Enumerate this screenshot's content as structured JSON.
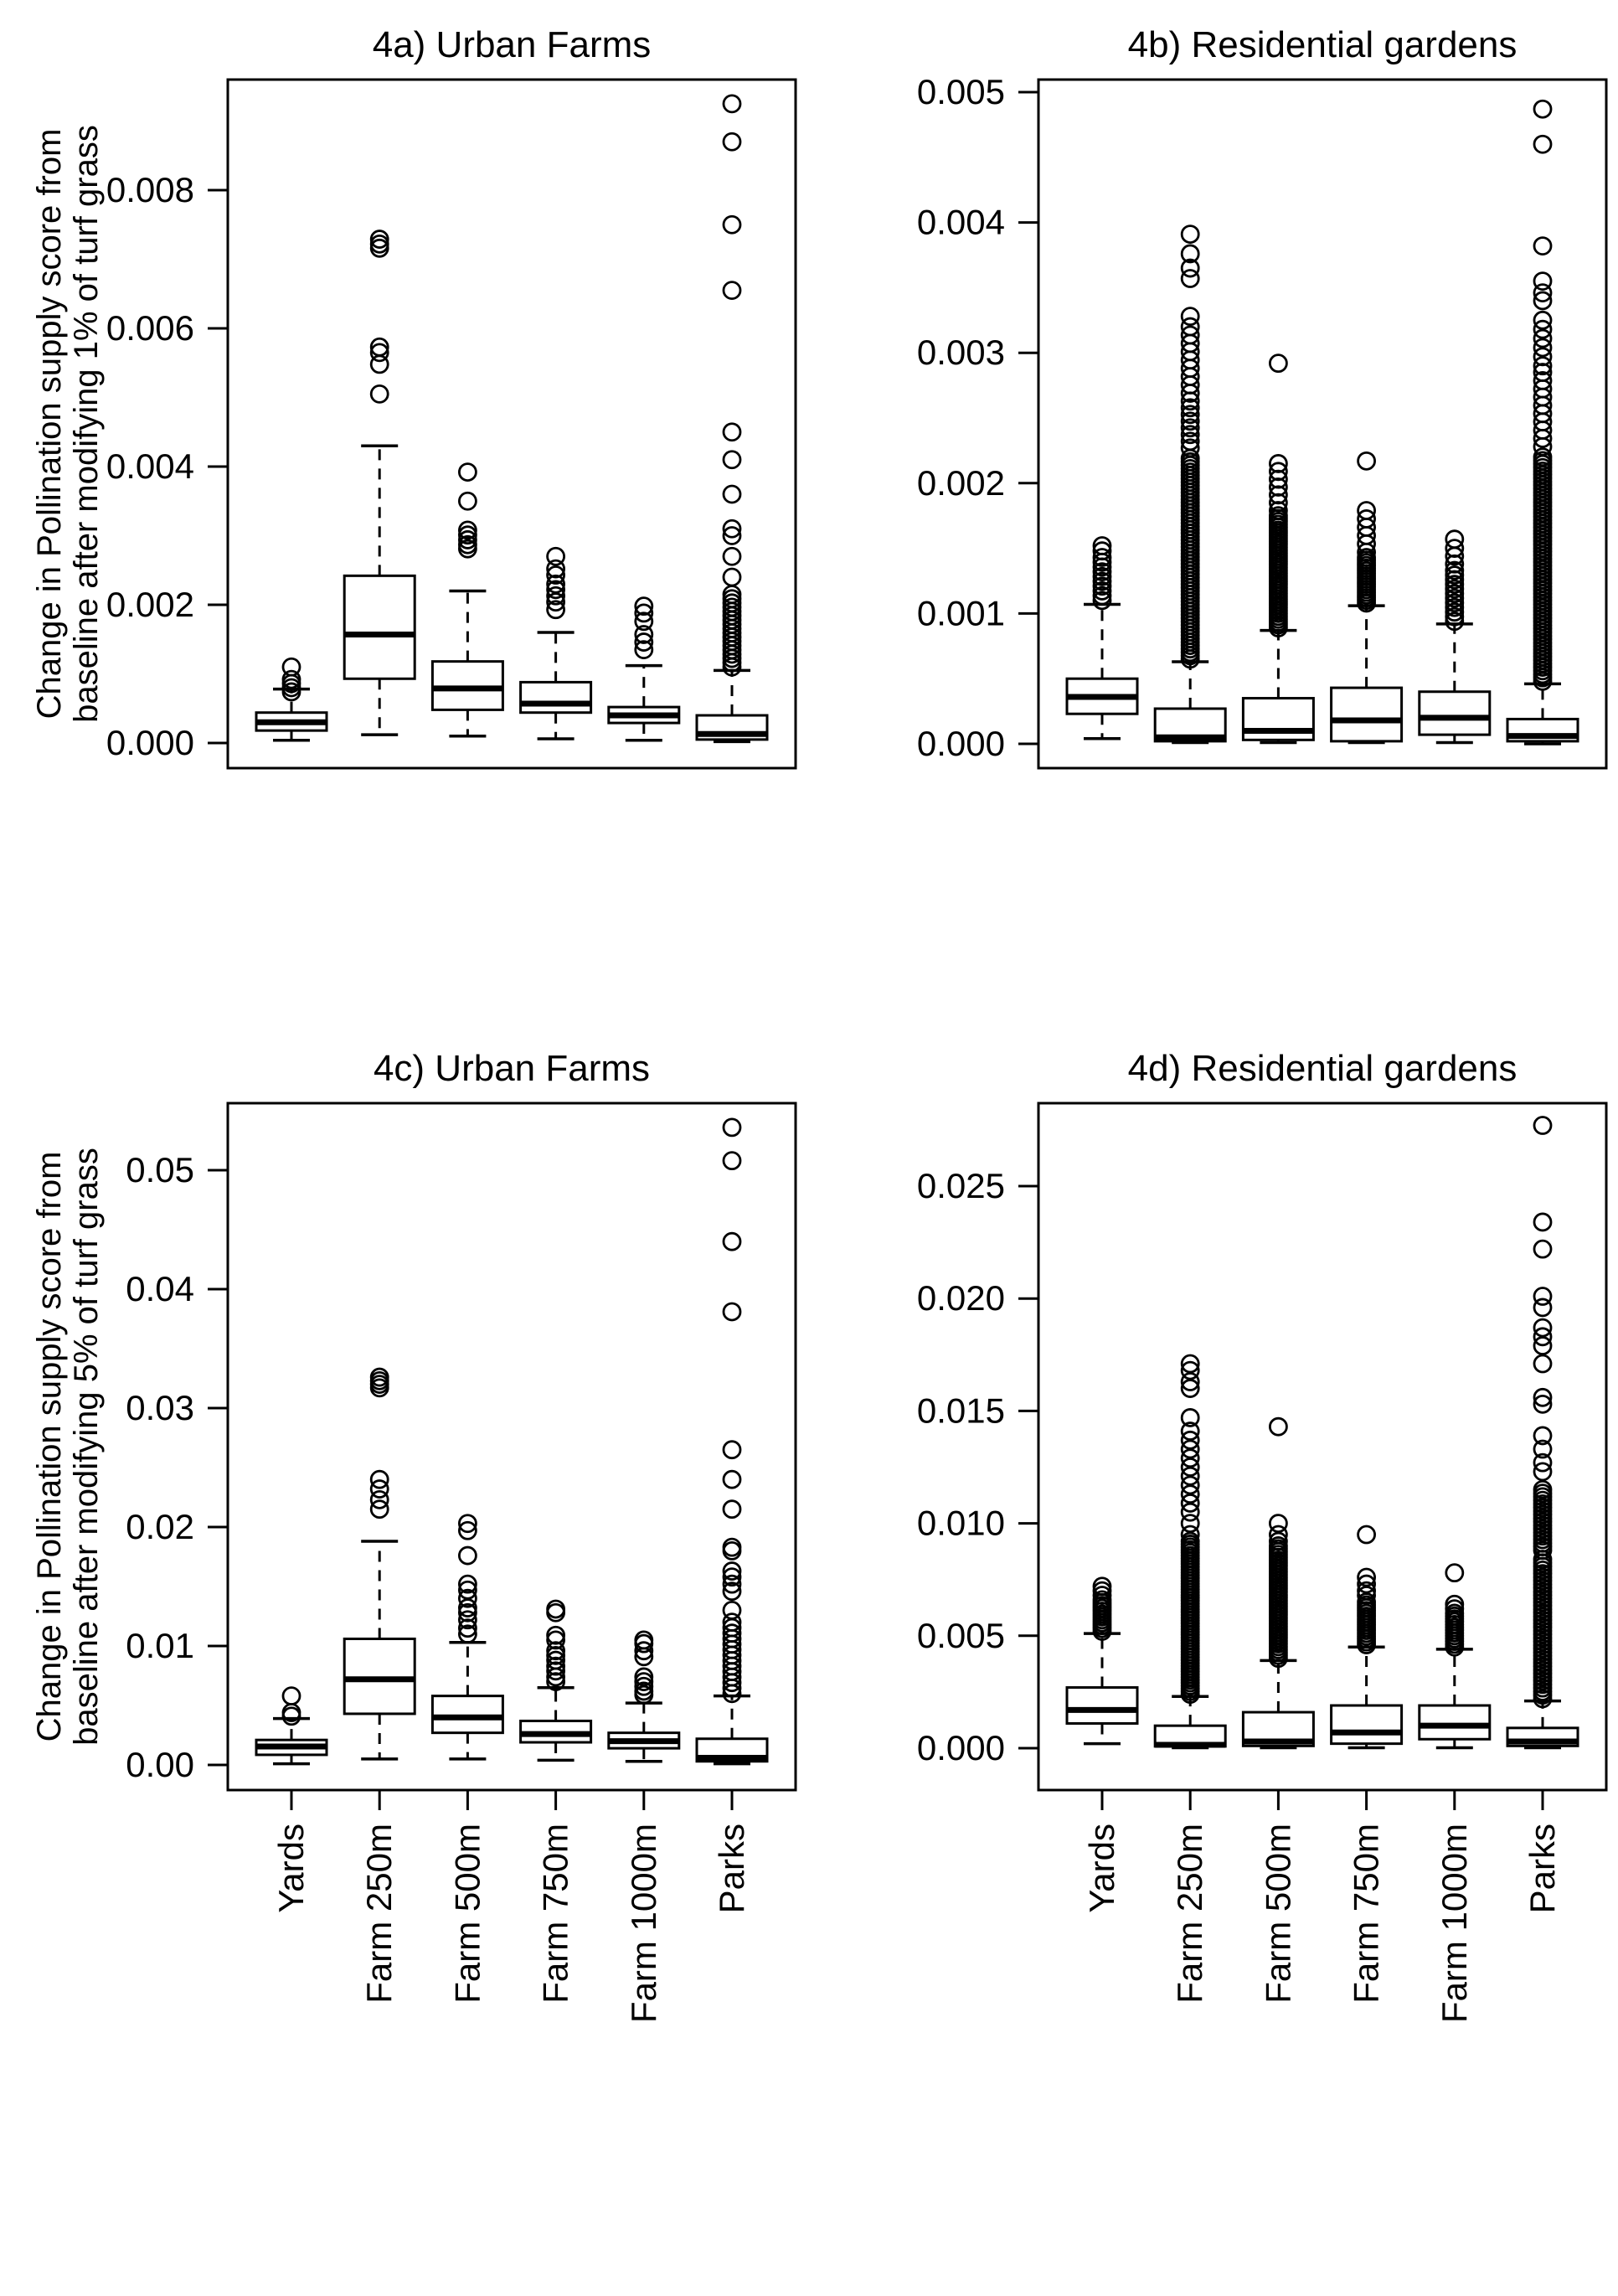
{
  "figure": {
    "description_colors": {
      "foreground": "#000000",
      "background": "#ffffff"
    }
  },
  "chart_data": [
    {
      "id": "4a",
      "type": "boxplot",
      "title": "4a)  Urban Farms",
      "ylabel_line1": "Change in Pollination supply score from",
      "ylabel_line2": "baseline after modifying 1% of turf grass",
      "yticks": [
        0.0,
        0.002,
        0.004,
        0.006,
        0.008
      ],
      "ytick_labels": [
        "0.000",
        "0.002",
        "0.004",
        "0.006",
        "0.008"
      ],
      "ylim": [
        -0.0004,
        0.0096
      ],
      "grid": false,
      "categories": [
        "Yards",
        "Farm 250m",
        "Farm 500m",
        "Farm 750m",
        "Farm 1000m",
        "Parks"
      ],
      "boxes": [
        {
          "category": "Yards",
          "min": 4e-05,
          "q1": 0.00018,
          "median": 0.0003,
          "q3": 0.00044,
          "max": 0.00078,
          "outliers": [
            0.00074,
            0.0008,
            0.00086,
            0.00092,
            0.0011
          ],
          "outlier_runs": []
        },
        {
          "category": "Farm 250m",
          "min": 0.00012,
          "q1": 0.00093,
          "median": 0.00157,
          "q3": 0.00242,
          "max": 0.0043,
          "outliers": [
            0.00505,
            0.00548,
            0.00565,
            0.00573,
            0.00716,
            0.00722,
            0.00729
          ],
          "outlier_runs": []
        },
        {
          "category": "Farm 500m",
          "min": 0.0001,
          "q1": 0.00048,
          "median": 0.00079,
          "q3": 0.00118,
          "max": 0.0022,
          "outliers": [
            0.00281,
            0.00287,
            0.00294,
            0.00301,
            0.00308,
            0.0035,
            0.00392
          ],
          "outlier_runs": []
        },
        {
          "category": "Farm 750m",
          "min": 6e-05,
          "q1": 0.00044,
          "median": 0.00057,
          "q3": 0.00088,
          "max": 0.0016,
          "outliers": [
            0.00193,
            0.00204,
            0.00213,
            0.00222,
            0.0023,
            0.00243,
            0.00252,
            0.0027
          ],
          "outlier_runs": []
        },
        {
          "category": "Farm 1000m",
          "min": 4e-05,
          "q1": 0.00029,
          "median": 0.0004,
          "q3": 0.00052,
          "max": 0.00112,
          "outliers": [
            0.00135,
            0.00146,
            0.00157,
            0.00176,
            0.00188,
            0.00198
          ],
          "outlier_runs": []
        },
        {
          "category": "Parks",
          "min": 2e-05,
          "q1": 5e-05,
          "median": 0.00013,
          "q3": 0.0004,
          "max": 0.00105,
          "outliers": [
            0.0024,
            0.0027,
            0.003,
            0.0031,
            0.0036,
            0.0041,
            0.0045,
            0.00655,
            0.0075,
            0.0087,
            0.00925
          ],
          "outlier_runs": [
            [
              0.0011,
              0.00215,
              18
            ]
          ]
        }
      ]
    },
    {
      "id": "4b",
      "type": "boxplot",
      "title": "4b)  Residential gardens",
      "ylabel_line1": "",
      "ylabel_line2": "",
      "yticks": [
        0.0,
        0.001,
        0.002,
        0.003,
        0.004,
        0.005
      ],
      "ytick_labels": [
        "0.000",
        "0.001",
        "0.002",
        "0.003",
        "0.004",
        "0.005"
      ],
      "ylim": [
        -0.0002,
        0.0051
      ],
      "grid": false,
      "categories": [
        "Yards",
        "Farm 250m",
        "Farm 500m",
        "Farm 750m",
        "Farm 1000m",
        "Parks"
      ],
      "boxes": [
        {
          "category": "Yards",
          "min": 4e-05,
          "q1": 0.00023,
          "median": 0.00036,
          "q3": 0.0005,
          "max": 0.00107,
          "outliers": [
            0.00148,
            0.00152
          ],
          "outlier_runs": [
            [
              0.0011,
              0.00143,
              10
            ]
          ]
        },
        {
          "category": "Farm 250m",
          "min": 1e-05,
          "q1": 2e-05,
          "median": 5e-05,
          "q3": 0.00027,
          "max": 0.00063,
          "outliers": [
            0.00328,
            0.00357,
            0.00365,
            0.00376,
            0.00391
          ],
          "outlier_runs": [
            [
              0.00065,
              0.00219,
              60
            ],
            [
              0.00227,
              0.00263,
              8
            ],
            [
              0.00269,
              0.0032,
              9
            ]
          ]
        },
        {
          "category": "Farm 500m",
          "min": 1e-05,
          "q1": 3e-05,
          "median": 0.0001,
          "q3": 0.00035,
          "max": 0.00087,
          "outliers": [
            0.00292
          ],
          "outlier_runs": [
            [
              0.00089,
              0.00175,
              40
            ],
            [
              0.00179,
              0.00215,
              7
            ]
          ]
        },
        {
          "category": "Farm 750m",
          "min": 1e-05,
          "q1": 2e-05,
          "median": 0.00018,
          "q3": 0.00043,
          "max": 0.00106,
          "outliers": [
            0.00217
          ],
          "outlier_runs": [
            [
              0.00108,
              0.00143,
              18
            ],
            [
              0.00147,
              0.00179,
              6
            ]
          ]
        },
        {
          "category": "Farm 1000m",
          "min": 1e-05,
          "q1": 7e-05,
          "median": 0.0002,
          "q3": 0.0004,
          "max": 0.00092,
          "outliers": [
            0.00157
          ],
          "outlier_runs": [
            [
              0.00094,
              0.00133,
              12
            ],
            [
              0.00138,
              0.0015,
              3
            ]
          ]
        },
        {
          "category": "Parks",
          "min": 0.0,
          "q1": 2e-05,
          "median": 6e-05,
          "q3": 0.00019,
          "max": 0.00046,
          "outliers": [
            0.0034,
            0.00346,
            0.00355,
            0.00382,
            0.0046,
            0.00487
          ],
          "outlier_runs": [
            [
              0.00048,
              0.0022,
              65
            ],
            [
              0.00228,
              0.00285,
              10
            ],
            [
              0.0029,
              0.00325,
              6
            ]
          ]
        }
      ]
    },
    {
      "id": "4c",
      "type": "boxplot",
      "title": "4c)  Urban Farms",
      "ylabel_line1": "Change in Pollination supply score from",
      "ylabel_line2": "baseline after modifying 5% of turf grass",
      "yticks": [
        0.0,
        0.01,
        0.02,
        0.03,
        0.04,
        0.05
      ],
      "ytick_labels": [
        "0.00",
        "0.01",
        "0.02",
        "0.03",
        "0.04",
        "0.05"
      ],
      "ylim": [
        -0.0021,
        0.0556
      ],
      "grid": false,
      "categories": [
        "Yards",
        "Farm 250m",
        "Farm 500m",
        "Farm 750m",
        "Farm 1000m",
        "Parks"
      ],
      "boxes": [
        {
          "category": "Yards",
          "min": 0.0001,
          "q1": 0.00085,
          "median": 0.00155,
          "q3": 0.0021,
          "max": 0.0039,
          "outliers": [
            0.0041,
            0.0044,
            0.0058
          ],
          "outlier_runs": []
        },
        {
          "category": "Farm 250m",
          "min": 0.0005,
          "q1": 0.0043,
          "median": 0.0072,
          "q3": 0.0106,
          "max": 0.0188,
          "outliers": [
            0.0215,
            0.0223,
            0.0232,
            0.024,
            0.0317,
            0.032,
            0.0323,
            0.0326
          ],
          "outlier_runs": []
        },
        {
          "category": "Farm 500m",
          "min": 0.0005,
          "q1": 0.0027,
          "median": 0.004,
          "q3": 0.0058,
          "max": 0.0103,
          "outliers": [
            0.011,
            0.0115,
            0.0122,
            0.0128,
            0.0132,
            0.014,
            0.0147,
            0.0152,
            0.0176,
            0.0197,
            0.0203
          ],
          "outlier_runs": []
        },
        {
          "category": "Farm 750m",
          "min": 0.0004,
          "q1": 0.0019,
          "median": 0.0026,
          "q3": 0.0037,
          "max": 0.0065,
          "outliers": [
            0.007,
            0.0074,
            0.0079,
            0.0083,
            0.0088,
            0.0092,
            0.0096,
            0.0105,
            0.0109,
            0.0128,
            0.0131
          ],
          "outlier_runs": []
        },
        {
          "category": "Farm 1000m",
          "min": 0.0003,
          "q1": 0.0014,
          "median": 0.002,
          "q3": 0.0027,
          "max": 0.0052,
          "outliers": [
            0.0059,
            0.0062,
            0.0066,
            0.007,
            0.0074,
            0.0091,
            0.0096,
            0.0102,
            0.0105
          ],
          "outlier_runs": []
        },
        {
          "category": "Parks",
          "min": 0.0001,
          "q1": 0.0003,
          "median": 0.0006,
          "q3": 0.0022,
          "max": 0.0058,
          "outliers": [
            0.013,
            0.0146,
            0.0152,
            0.0158,
            0.0163,
            0.018,
            0.0183,
            0.0215,
            0.024,
            0.0265,
            0.0381,
            0.044,
            0.0508,
            0.0536
          ],
          "outlier_runs": [
            [
              0.006,
              0.012,
              14
            ]
          ]
        }
      ]
    },
    {
      "id": "4d",
      "type": "boxplot",
      "title": "4d)  Residential gardens",
      "ylabel_line1": "",
      "ylabel_line2": "",
      "yticks": [
        0.0,
        0.005,
        0.01,
        0.015,
        0.02,
        0.025
      ],
      "ytick_labels": [
        "0.000",
        "0.005",
        "0.010",
        "0.015",
        "0.020",
        "0.025"
      ],
      "ylim": [
        -0.0019,
        0.0287
      ],
      "grid": false,
      "categories": [
        "Yards",
        "Farm 250m",
        "Farm 500m",
        "Farm 750m",
        "Farm 1000m",
        "Parks"
      ],
      "boxes": [
        {
          "category": "Yards",
          "min": 0.0002,
          "q1": 0.0011,
          "median": 0.0017,
          "q3": 0.0027,
          "max": 0.0051,
          "outliers": [
            0.0068,
            0.007,
            0.0072
          ],
          "outlier_runs": [
            [
              0.0052,
              0.0066,
              12
            ]
          ]
        },
        {
          "category": "Farm 250m",
          "min": 2e-05,
          "q1": 8e-05,
          "median": 0.00015,
          "q3": 0.001,
          "max": 0.0023,
          "outliers": [
            0.0095,
            0.01,
            0.0105,
            0.0109,
            0.0113,
            0.0117,
            0.0121,
            0.0125,
            0.0129,
            0.0133,
            0.0137,
            0.0141,
            0.0147,
            0.016,
            0.0163,
            0.0168,
            0.0171
          ],
          "outlier_runs": [
            [
              0.0024,
              0.0092,
              55
            ]
          ]
        },
        {
          "category": "Farm 500m",
          "min": 2e-05,
          "q1": 0.0001,
          "median": 0.0003,
          "q3": 0.0016,
          "max": 0.0039,
          "outliers": [
            0.0092,
            0.0095,
            0.01,
            0.0143
          ],
          "outlier_runs": [
            [
              0.004,
              0.009,
              40
            ]
          ]
        },
        {
          "category": "Farm 750m",
          "min": 2e-05,
          "q1": 0.0002,
          "median": 0.0007,
          "q3": 0.0019,
          "max": 0.0045,
          "outliers": [
            0.0068,
            0.007,
            0.0073,
            0.0076,
            0.0095
          ],
          "outlier_runs": [
            [
              0.0046,
              0.0065,
              16
            ]
          ]
        },
        {
          "category": "Farm 1000m",
          "min": 2e-05,
          "q1": 0.0004,
          "median": 0.001,
          "q3": 0.0019,
          "max": 0.0044,
          "outliers": [
            0.0062,
            0.0064,
            0.0078
          ],
          "outlier_runs": [
            [
              0.0045,
              0.006,
              13
            ]
          ]
        },
        {
          "category": "Parks",
          "min": 2e-05,
          "q1": 0.0001,
          "median": 0.0003,
          "q3": 0.0009,
          "max": 0.0021,
          "outliers": [
            0.0277,
            0.0234,
            0.0222,
            0.0201,
            0.0196,
            0.0187,
            0.0183,
            0.0179,
            0.0171,
            0.0156,
            0.0153,
            0.0139,
            0.0133,
            0.0127,
            0.0123
          ],
          "outlier_runs": [
            [
              0.0022,
              0.0084,
              40
            ],
            [
              0.0088,
              0.0115,
              18
            ]
          ]
        }
      ]
    }
  ]
}
